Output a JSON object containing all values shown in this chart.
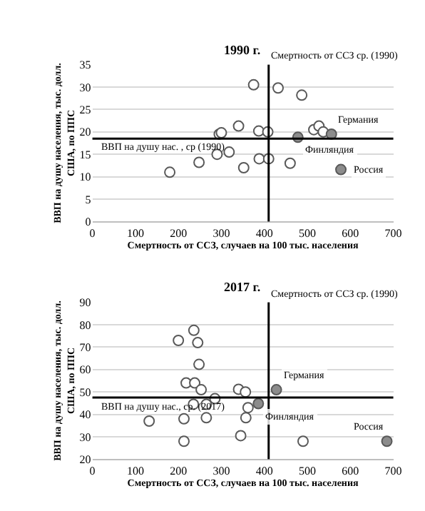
{
  "chart_data": [
    {
      "type": "scatter",
      "title": "1990 г.",
      "xlabel": "Смертность от ССЗ, случаев на 100 тыс. населения",
      "ylabel": "ВВП на душу населения, тыс. долл. США, по ППС",
      "xlim": [
        0,
        700
      ],
      "xticks": [
        0,
        100,
        200,
        300,
        400,
        500,
        600,
        700
      ],
      "ylim": [
        0,
        35
      ],
      "yticks": [
        0,
        5,
        10,
        15,
        20,
        25,
        30,
        35
      ],
      "grid": "y",
      "marker": "circle",
      "series": [
        {
          "color": "#ffffff",
          "x": [
            180,
            248,
            290,
            295,
            300,
            318,
            340,
            352,
            375,
            387,
            388,
            408,
            410,
            432,
            460,
            487,
            515,
            527,
            537
          ],
          "values": [
            11,
            13.2,
            15,
            19.5,
            19.8,
            15.5,
            21.3,
            12,
            30.5,
            20.2,
            14,
            20,
            14,
            29.8,
            13,
            28.2,
            20.5,
            21.3,
            20
          ]
        },
        {
          "color": "#8c8c8c",
          "x": [
            478,
            556,
            578
          ],
          "values": [
            18.8,
            19.5,
            11.6
          ]
        }
      ],
      "ref_lines": [
        {
          "axis": "x",
          "value": 410,
          "label": "Смертность от ССЗ ср. (1990)",
          "color": "#000000"
        },
        {
          "axis": "y",
          "value": 18.5,
          "label": "ВВП на душу нас. , ср (1990)",
          "color": "#000000"
        }
      ],
      "annotations": [
        {
          "text": "Германия",
          "x": 556,
          "y": 19.5
        },
        {
          "text": "Финляндия",
          "x": 478,
          "y": 18.8
        },
        {
          "text": "Россия",
          "x": 578,
          "y": 11.6
        }
      ]
    },
    {
      "type": "scatter",
      "title": "2017 г.",
      "xlabel": "Смертность от ССЗ, случаев на 100 тыс. населения",
      "ylabel": "ВВП на душу населения, тыс. долл. США, по ППС",
      "xlim": [
        0,
        700
      ],
      "xticks": [
        0,
        100,
        200,
        300,
        400,
        500,
        600,
        700
      ],
      "ylim": [
        20,
        90
      ],
      "yticks": [
        20,
        30,
        40,
        50,
        60,
        70,
        80,
        90
      ],
      "grid": "y",
      "marker": "circle",
      "series": [
        {
          "color": "#ffffff",
          "x": [
            132,
            200,
            213,
            213,
            218,
            235,
            236,
            238,
            245,
            248,
            253,
            265,
            265,
            285,
            340,
            345,
            356,
            357,
            362,
            490
          ],
          "values": [
            37,
            73,
            38,
            28,
            54,
            44.5,
            77.5,
            54,
            72,
            62.3,
            51,
            44.5,
            38.5,
            47,
            51.2,
            30.5,
            50,
            38.5,
            43,
            28
          ]
        },
        {
          "color": "#8c8c8c",
          "x": [
            386,
            428,
            685
          ],
          "values": [
            44.8,
            51,
            28
          ]
        }
      ],
      "ref_lines": [
        {
          "axis": "x",
          "value": 410,
          "label": "Смертность от ССЗ ср. (1990)",
          "color": "#000000"
        },
        {
          "axis": "y",
          "value": 47.5,
          "label": "ВВП на душу нас., ср. (2017)",
          "color": "#000000"
        }
      ],
      "annotations": [
        {
          "text": "Германия",
          "x": 428,
          "y": 51
        },
        {
          "text": "Финляндия",
          "x": 386,
          "y": 44.8
        },
        {
          "text": "Россия",
          "x": 685,
          "y": 28
        }
      ]
    }
  ]
}
